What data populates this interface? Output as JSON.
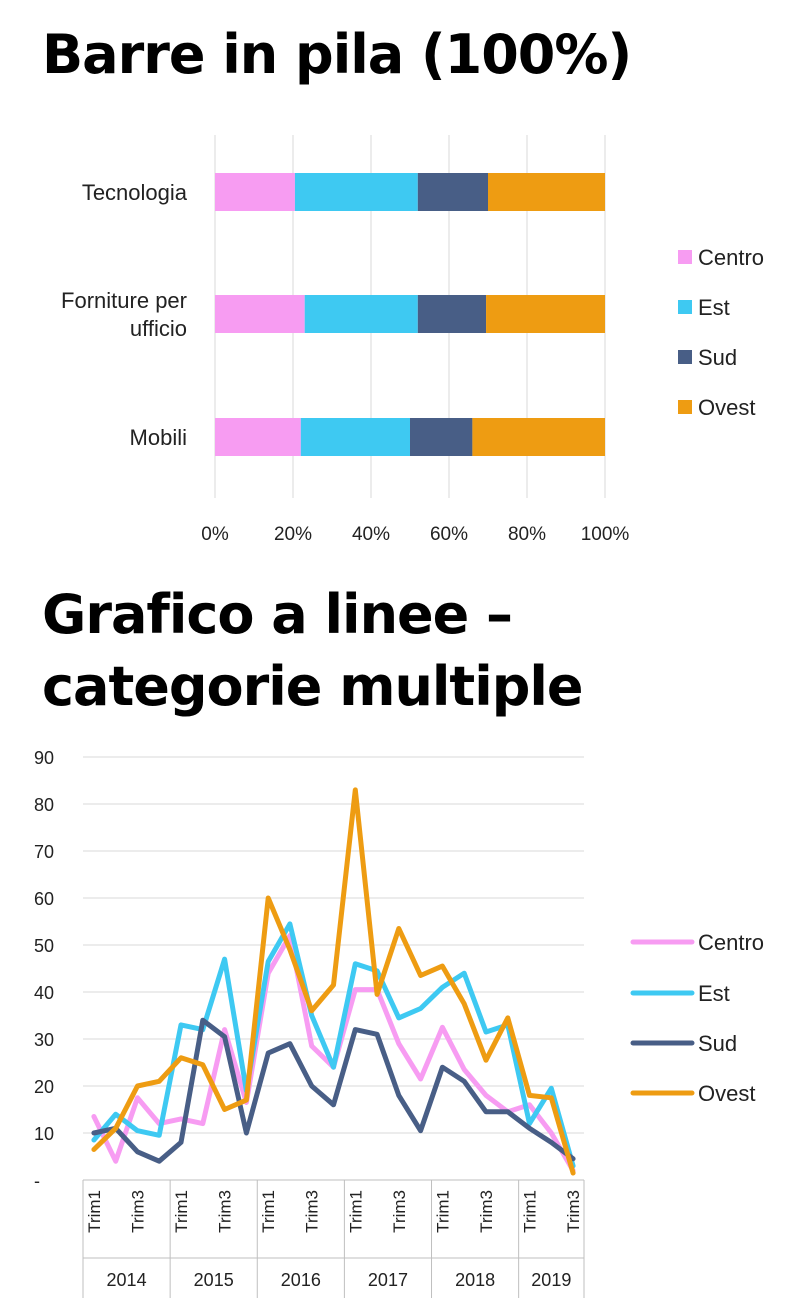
{
  "titles": {
    "stacked": "Barre in pila (100%)",
    "line_line1": "Grafico a linee –",
    "line_line2": "categorie multiple"
  },
  "colors": {
    "Centro": "#f79cf2",
    "Est": "#3ec9f2",
    "Sud": "#485e86",
    "Ovest": "#ee9c12",
    "grid": "#d9d9d9",
    "axis": "#bfbfbf"
  },
  "chart_data": [
    {
      "type": "bar",
      "orientation": "horizontal",
      "stacked": "percent",
      "title": "Barre in pila (100%)",
      "categories": [
        [
          "Tecnologia"
        ],
        [
          "Forniture per",
          "ufficio"
        ],
        [
          "Mobili"
        ]
      ],
      "series": [
        {
          "name": "Centro",
          "values": [
            20.5,
            23,
            22
          ]
        },
        {
          "name": "Est",
          "values": [
            31.5,
            29,
            28
          ]
        },
        {
          "name": "Sud",
          "values": [
            18,
            17.5,
            16
          ]
        },
        {
          "name": "Ovest",
          "values": [
            30,
            30.5,
            34
          ]
        }
      ],
      "xticks": [
        "0%",
        "20%",
        "40%",
        "60%",
        "80%",
        "100%"
      ],
      "xlim": [
        0,
        100
      ],
      "grid": true,
      "legend": "right"
    },
    {
      "type": "line",
      "title": "Grafico a linee – categorie multiple",
      "years": [
        "2014",
        "2015",
        "2016",
        "2017",
        "2018",
        "2019"
      ],
      "quarter_labels": [
        "Trim1",
        "Trim3"
      ],
      "x": [
        "2014 Q1",
        "2014 Q2",
        "2014 Q3",
        "2014 Q4",
        "2015 Q1",
        "2015 Q2",
        "2015 Q3",
        "2015 Q4",
        "2016 Q1",
        "2016 Q2",
        "2016 Q3",
        "2016 Q4",
        "2017 Q1",
        "2017 Q2",
        "2017 Q3",
        "2017 Q4",
        "2018 Q1",
        "2018 Q2",
        "2018 Q3",
        "2018 Q4",
        "2019 Q1",
        "2019 Q2",
        "2019 Q3"
      ],
      "yticks": [
        "-",
        "10",
        "20",
        "30",
        "40",
        "50",
        "60",
        "70",
        "80",
        "90"
      ],
      "ylim": [
        0,
        90
      ],
      "grid": true,
      "legend": "right",
      "series": [
        {
          "name": "Centro",
          "values": [
            13.5,
            4,
            17.5,
            12,
            13,
            12,
            32,
            16.5,
            44,
            52,
            28.5,
            24,
            40.5,
            40.5,
            29,
            21.5,
            32.5,
            23.5,
            18,
            14.5,
            16,
            10,
            2
          ]
        },
        {
          "name": "Est",
          "values": [
            8.5,
            14,
            10.5,
            9.5,
            33,
            32,
            47,
            19,
            46.5,
            54.5,
            35,
            24,
            46,
            44.5,
            34.5,
            36.5,
            41,
            44,
            31.5,
            33,
            12,
            19.5,
            3
          ]
        },
        {
          "name": "Sud",
          "values": [
            10,
            11,
            6,
            4,
            8,
            34,
            30.5,
            10,
            27,
            29,
            20,
            16,
            32,
            31,
            18,
            10.5,
            24,
            21,
            14.5,
            14.5,
            11,
            8,
            4.5
          ]
        },
        {
          "name": "Ovest",
          "values": [
            6.5,
            11,
            20,
            21,
            26,
            24.5,
            15,
            17,
            60,
            49,
            36,
            41.5,
            83,
            39.5,
            53.5,
            43.5,
            45.5,
            37.5,
            25.5,
            34.5,
            18,
            17.5,
            1.5
          ]
        }
      ]
    }
  ]
}
